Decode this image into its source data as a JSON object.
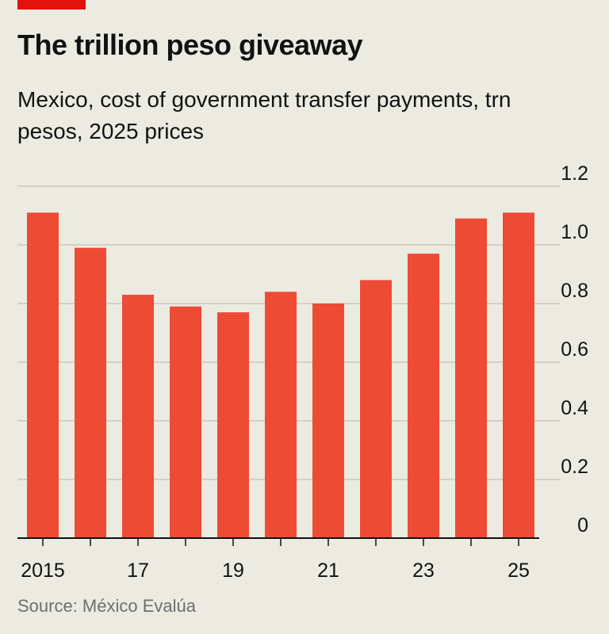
{
  "header": {
    "title": "The trillion peso giveaway",
    "subtitle": "Mexico, cost of government transfer payments, trn pesos, 2025 prices"
  },
  "footer": {
    "source": "Source: México Evalúa"
  },
  "colors": {
    "bar": "#ee4b35",
    "accent": "#e3120b",
    "grid": "#c9c8c0",
    "axis": "#121212",
    "background": "#ecebe2"
  },
  "chart_data": {
    "type": "bar",
    "title": "The trillion peso giveaway",
    "subtitle": "Mexico, cost of government transfer payments, trn pesos, 2025 prices",
    "categories": [
      "2015",
      "2016",
      "2017",
      "2018",
      "2019",
      "2020",
      "2021",
      "2022",
      "2023",
      "2024",
      "2025"
    ],
    "values": [
      1.11,
      0.99,
      0.83,
      0.79,
      0.77,
      0.84,
      0.8,
      0.88,
      0.97,
      1.09,
      1.11
    ],
    "x_tick_labels": [
      "2015",
      "",
      "17",
      "",
      "19",
      "",
      "21",
      "",
      "23",
      "",
      "25"
    ],
    "y_ticks": [
      0,
      0.2,
      0.4,
      0.6,
      0.8,
      1.0,
      1.2
    ],
    "y_tick_labels": [
      "0",
      "0.2",
      "0.4",
      "0.6",
      "0.8",
      "1.0",
      "1.2"
    ],
    "ylim": [
      0,
      1.2
    ],
    "xlabel": "",
    "ylabel": "",
    "grid": true,
    "y_axis_side": "right"
  }
}
